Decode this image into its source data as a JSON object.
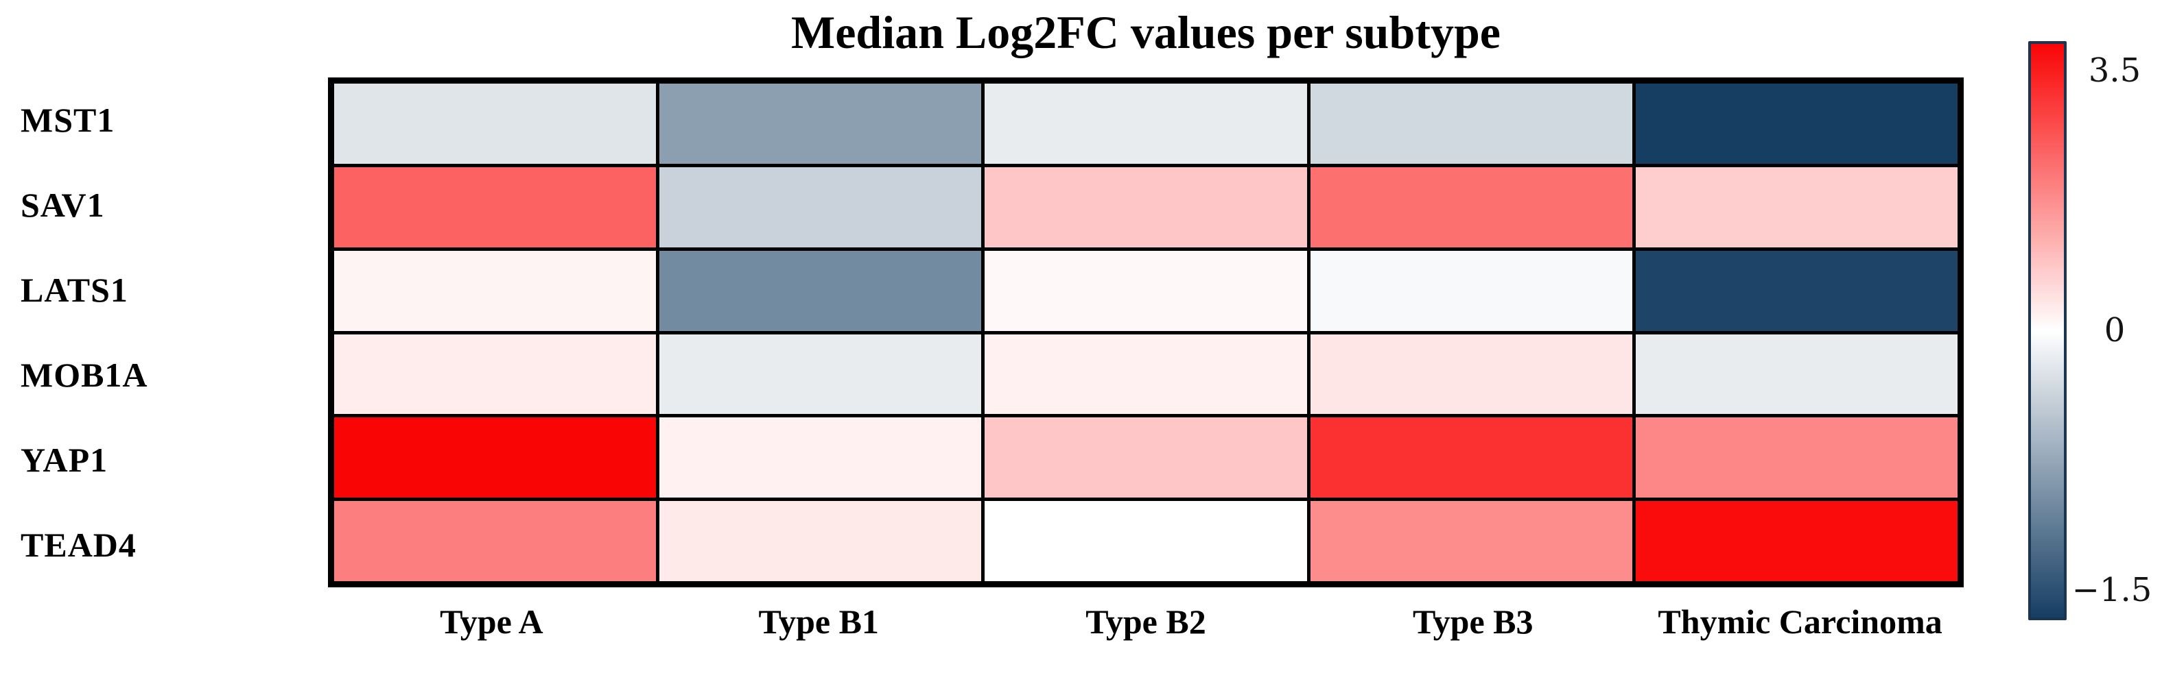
{
  "chart_data": {
    "type": "heatmap",
    "title": "Median Log2FC values per subtype",
    "rows": [
      "MST1",
      "SAV1",
      "LATS1",
      "MOB1A",
      "YAP1",
      "TEAD4"
    ],
    "columns": [
      "Type A",
      "Type B1",
      "Type B2",
      "Type B3",
      "Thymic Carcinoma"
    ],
    "values": [
      [
        -0.2,
        -0.75,
        -0.15,
        -0.3,
        -1.5
      ],
      [
        2.2,
        -0.35,
        0.8,
        2.0,
        0.7
      ],
      [
        0.15,
        -0.9,
        0.1,
        -0.05,
        -1.45
      ],
      [
        0.25,
        -0.15,
        0.2,
        0.35,
        -0.15
      ],
      [
        3.5,
        0.2,
        0.8,
        2.9,
        1.7
      ],
      [
        1.8,
        0.3,
        0.0,
        1.6,
        3.4
      ]
    ],
    "xlabel": "",
    "ylabel": "",
    "grid": "black cell borders",
    "legend_position": "right",
    "colorbar": {
      "vmin": -1.5,
      "vcenter": 0,
      "vmax": 3.5,
      "ticks": [
        "3.5",
        "0",
        "−1.5"
      ],
      "colors": {
        "positive": "#fa0505",
        "zero": "#ffffff",
        "negative": "#163e63",
        "border": "#1b3450"
      }
    }
  }
}
